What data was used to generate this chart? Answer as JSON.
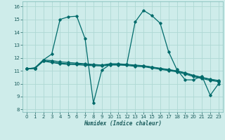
{
  "xlabel": "Humidex (Indice chaleur)",
  "bg_color": "#ceecea",
  "grid_color": "#aed8d4",
  "line_color": "#006b6b",
  "xlim": [
    -0.5,
    23.5
  ],
  "ylim": [
    7.8,
    16.4
  ],
  "yticks": [
    8,
    9,
    10,
    11,
    12,
    13,
    14,
    15,
    16
  ],
  "xticks": [
    0,
    1,
    2,
    3,
    4,
    5,
    6,
    7,
    8,
    9,
    10,
    11,
    12,
    13,
    14,
    15,
    16,
    17,
    18,
    19,
    20,
    21,
    22,
    23
  ],
  "series": [
    [
      11.15,
      11.25,
      11.85,
      12.3,
      15.0,
      15.2,
      15.25,
      13.5,
      8.5,
      11.05,
      11.5,
      11.5,
      11.5,
      14.8,
      15.7,
      15.3,
      14.7,
      12.5,
      11.1,
      10.3,
      10.3,
      10.6,
      9.1,
      10.0
    ],
    [
      11.15,
      11.2,
      11.85,
      11.8,
      11.7,
      11.65,
      11.6,
      11.55,
      11.5,
      11.45,
      11.55,
      11.55,
      11.5,
      11.45,
      11.4,
      11.3,
      11.2,
      11.1,
      11.0,
      10.85,
      10.65,
      10.5,
      10.35,
      10.25
    ],
    [
      11.15,
      11.2,
      11.8,
      11.7,
      11.6,
      11.55,
      11.55,
      11.5,
      11.45,
      11.45,
      11.5,
      11.5,
      11.48,
      11.4,
      11.38,
      11.28,
      11.18,
      11.08,
      10.98,
      10.82,
      10.62,
      10.48,
      10.33,
      10.22
    ],
    [
      11.15,
      11.2,
      11.75,
      11.65,
      11.55,
      11.5,
      11.48,
      11.43,
      11.4,
      11.38,
      11.45,
      11.45,
      11.42,
      11.35,
      11.32,
      11.22,
      11.12,
      11.02,
      10.92,
      10.75,
      10.55,
      10.4,
      10.26,
      10.15
    ]
  ],
  "markersize": 1.8,
  "linewidth": 0.9,
  "tick_fontsize": 5.0,
  "xlabel_fontsize": 5.5
}
